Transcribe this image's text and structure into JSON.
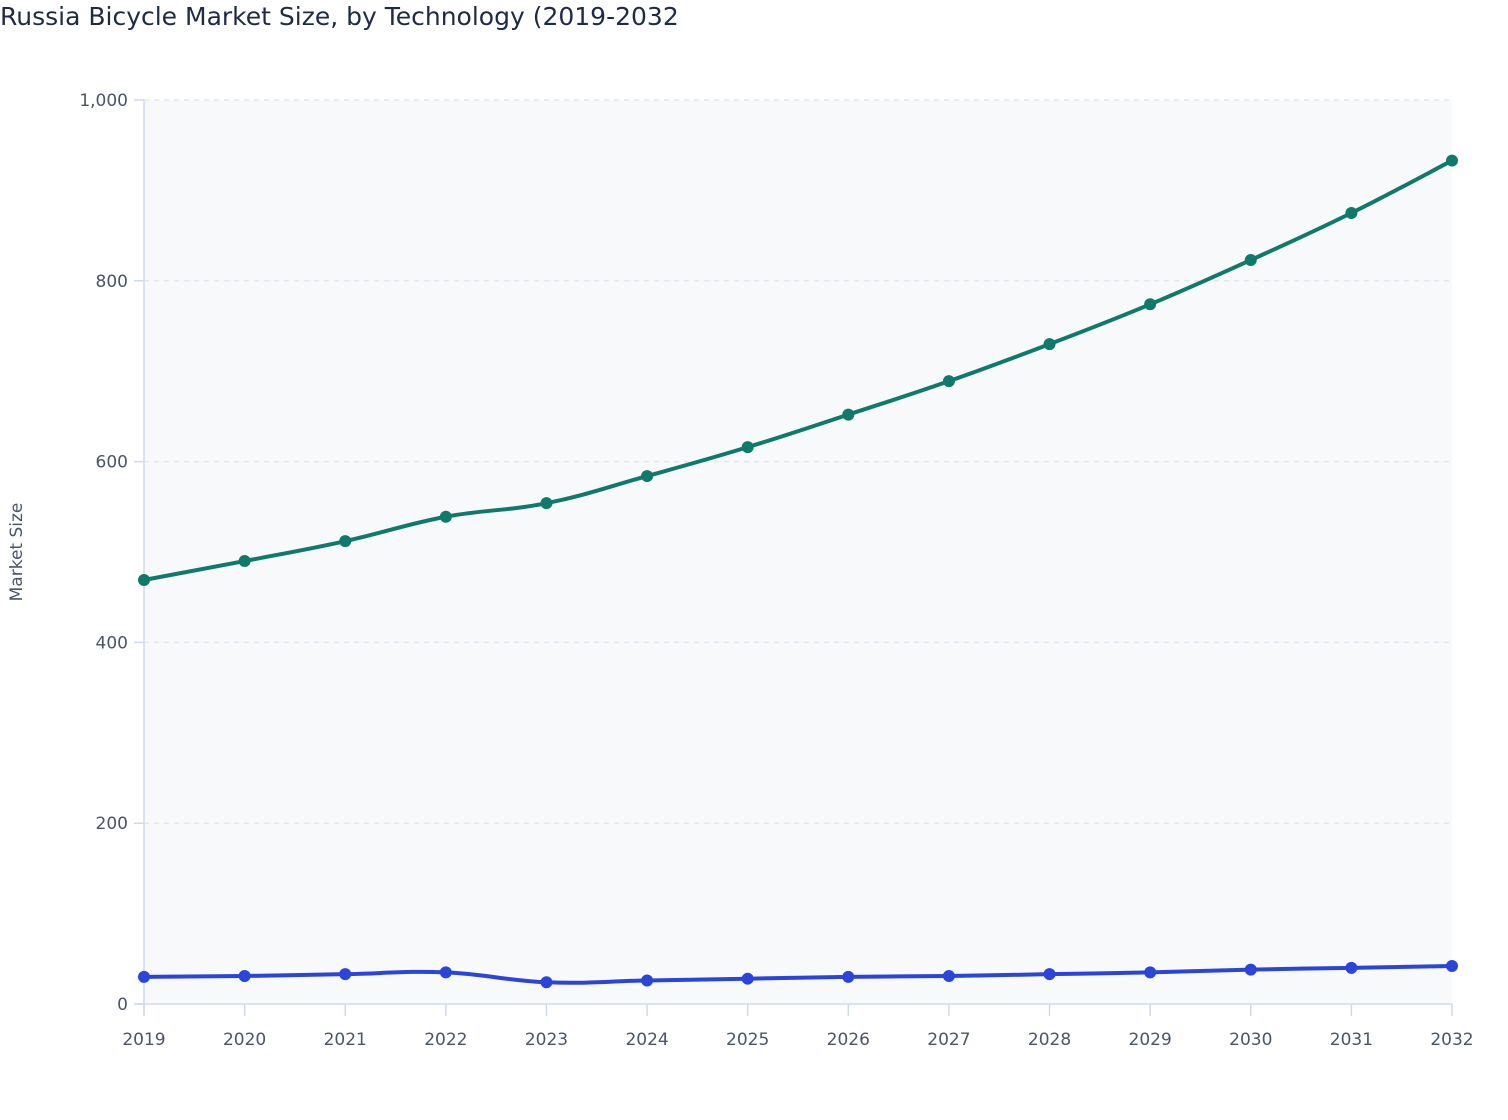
{
  "chart_data": {
    "type": "line",
    "title": "Russia Bicycle Market Size, by Technology (2019-2032",
    "xlabel": "",
    "ylabel": "Market Size",
    "ylim": [
      0,
      1000
    ],
    "yticks": [
      "0",
      "200",
      "400",
      "600",
      "800",
      "1,000"
    ],
    "ytick_values": [
      0,
      200,
      400,
      600,
      800,
      1000
    ],
    "categories": [
      "2019",
      "2020",
      "2021",
      "2022",
      "2023",
      "2024",
      "2025",
      "2026",
      "2027",
      "2028",
      "2029",
      "2030",
      "2031",
      "2032"
    ],
    "grid": true,
    "series": [
      {
        "color": "#0f7a6c",
        "values": [
          469,
          490,
          512,
          539,
          554,
          584,
          616,
          652,
          689,
          730,
          774,
          823,
          875,
          933
        ]
      },
      {
        "color": "#2a45d8",
        "values": [
          30,
          31,
          33,
          35,
          24,
          26,
          28,
          30,
          31,
          33,
          35,
          38,
          40,
          42
        ]
      }
    ]
  }
}
